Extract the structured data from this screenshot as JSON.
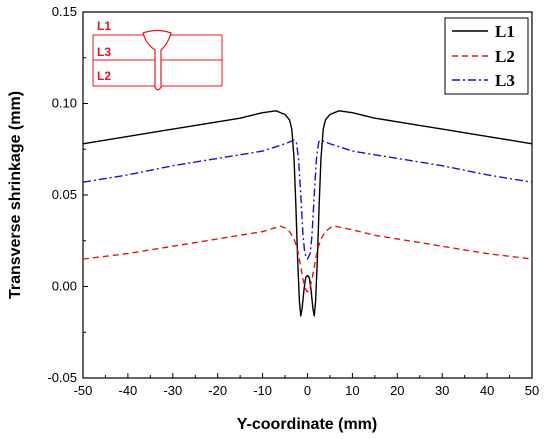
{
  "chart_data": {
    "type": "line",
    "xlabel": "Y-coordinate (mm)",
    "ylabel": "Transverse shrinkage (mm)",
    "xlim": [
      -50,
      50
    ],
    "ylim": [
      -0.05,
      0.15
    ],
    "xticks": [
      -50,
      -40,
      -30,
      -20,
      -10,
      0,
      10,
      20,
      30,
      40,
      50
    ],
    "yticks": [
      -0.05,
      0.0,
      0.05,
      0.1,
      0.15
    ],
    "yticklabels": [
      "-0.05",
      "0.00",
      "0.05",
      "0.10",
      "0.15"
    ],
    "grid": false,
    "legend": "top-right",
    "series": [
      {
        "name": "L1",
        "color": "#000000",
        "dash": "solid",
        "points": [
          [
            -50,
            0.078
          ],
          [
            -40,
            0.082
          ],
          [
            -30,
            0.086
          ],
          [
            -20,
            0.09
          ],
          [
            -15,
            0.092
          ],
          [
            -10,
            0.095
          ],
          [
            -7,
            0.096
          ],
          [
            -5,
            0.094
          ],
          [
            -4,
            0.091
          ],
          [
            -3.5,
            0.086
          ],
          [
            -3,
            0.07
          ],
          [
            -2.6,
            0.045
          ],
          [
            -2.2,
            0.015
          ],
          [
            -1.8,
            -0.008
          ],
          [
            -1.5,
            -0.016
          ],
          [
            -1.2,
            -0.012
          ],
          [
            -0.8,
            -0.002
          ],
          [
            -0.4,
            0.005
          ],
          [
            0,
            0.006
          ],
          [
            0.4,
            0.005
          ],
          [
            0.8,
            -0.002
          ],
          [
            1.2,
            -0.012
          ],
          [
            1.5,
            -0.016
          ],
          [
            1.8,
            -0.008
          ],
          [
            2.2,
            0.015
          ],
          [
            2.6,
            0.045
          ],
          [
            3,
            0.07
          ],
          [
            3.5,
            0.086
          ],
          [
            4,
            0.091
          ],
          [
            5,
            0.094
          ],
          [
            7,
            0.096
          ],
          [
            10,
            0.095
          ],
          [
            15,
            0.092
          ],
          [
            20,
            0.09
          ],
          [
            30,
            0.086
          ],
          [
            40,
            0.082
          ],
          [
            50,
            0.078
          ]
        ]
      },
      {
        "name": "L2",
        "color": "#e8141b",
        "dash": "dashed",
        "points": [
          [
            -50,
            0.015
          ],
          [
            -40,
            0.018
          ],
          [
            -30,
            0.022
          ],
          [
            -20,
            0.026
          ],
          [
            -10,
            0.03
          ],
          [
            -6,
            0.033
          ],
          [
            -5,
            0.032
          ],
          [
            -4,
            0.03
          ],
          [
            -3,
            0.026
          ],
          [
            -2.2,
            0.02
          ],
          [
            -1.6,
            0.012
          ],
          [
            -1,
            0.004
          ],
          [
            -0.5,
            -0.001
          ],
          [
            0,
            -0.003
          ],
          [
            0.5,
            -0.001
          ],
          [
            1,
            0.004
          ],
          [
            1.6,
            0.012
          ],
          [
            2.2,
            0.02
          ],
          [
            3,
            0.026
          ],
          [
            4,
            0.03
          ],
          [
            5,
            0.032
          ],
          [
            6,
            0.033
          ],
          [
            10,
            0.031
          ],
          [
            15,
            0.028
          ],
          [
            20,
            0.026
          ],
          [
            30,
            0.022
          ],
          [
            40,
            0.018
          ],
          [
            50,
            0.015
          ]
        ]
      },
      {
        "name": "L3",
        "color": "#1414d2",
        "dash": "dashdot",
        "points": [
          [
            -50,
            0.057
          ],
          [
            -40,
            0.061
          ],
          [
            -30,
            0.066
          ],
          [
            -20,
            0.07
          ],
          [
            -10,
            0.074
          ],
          [
            -5,
            0.078
          ],
          [
            -3,
            0.08
          ],
          [
            -2.5,
            0.079
          ],
          [
            -2,
            0.07
          ],
          [
            -1.5,
            0.05
          ],
          [
            -1,
            0.028
          ],
          [
            -0.6,
            0.018
          ],
          [
            0,
            0.015
          ],
          [
            0.6,
            0.018
          ],
          [
            1,
            0.028
          ],
          [
            1.5,
            0.05
          ],
          [
            2,
            0.07
          ],
          [
            2.5,
            0.079
          ],
          [
            3,
            0.08
          ],
          [
            5,
            0.078
          ],
          [
            10,
            0.074
          ],
          [
            20,
            0.07
          ],
          [
            30,
            0.066
          ],
          [
            40,
            0.061
          ],
          [
            50,
            0.057
          ]
        ]
      }
    ],
    "inset": {
      "labels": [
        "L1",
        "L3",
        "L2"
      ],
      "line_color": "#e8141b"
    }
  }
}
